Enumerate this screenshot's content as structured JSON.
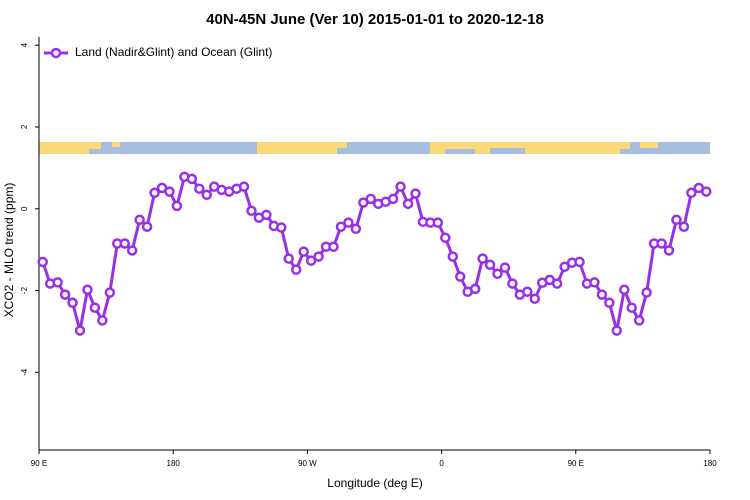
{
  "chart_data": {
    "type": "line",
    "title": "40N-45N June (Ver 10)   2015-01-01 to 2020-12-18",
    "x_label": "Longitude (deg E)",
    "y_label": "XCO2 - MLO trend (ppm)",
    "xlim": [
      90,
      540
    ],
    "ylim": [
      -5.9,
      4.2
    ],
    "xticks": [
      {
        "value": 90,
        "label": "90 E"
      },
      180,
      {
        "value": 270,
        "label": "90 W"
      },
      {
        "value": 360,
        "label": "0"
      },
      {
        "value": 450,
        "label": "90 E"
      },
      {
        "value": 540,
        "label": "180"
      }
    ],
    "yticks": [
      -4,
      -2,
      0,
      2,
      4
    ],
    "legend": "top-left",
    "x": [
      92.5,
      97.5,
      102.5,
      107.5,
      112.5,
      117.5,
      122.5,
      127.5,
      132.5,
      137.5,
      142.5,
      147.5,
      152.5,
      157.5,
      162.5,
      167.5,
      172.5,
      177.5,
      182.5,
      187.5,
      192.5,
      197.5,
      202.5,
      207.5,
      212.5,
      217.5,
      222.5,
      227.5,
      232.5,
      237.5,
      242.5,
      247.5,
      252.5,
      257.5,
      262.5,
      267.5,
      272.5,
      277.5,
      282.5,
      287.5,
      292.5,
      297.5,
      302.5,
      307.5,
      312.5,
      317.5,
      322.5,
      327.5,
      332.5,
      337.5,
      342.5,
      347.5,
      352.5,
      357.5,
      362.5,
      367.5,
      372.5,
      377.5,
      382.5,
      387.5,
      392.5,
      397.5,
      402.5,
      407.5,
      412.5,
      417.5,
      422.5,
      427.5,
      432.5,
      437.5,
      442.5,
      447.5,
      452.5,
      457.5,
      462.5,
      467.5,
      472.5,
      477.5,
      482.5,
      487.5,
      492.5,
      497.5,
      502.5,
      507.5,
      512.5,
      517.5,
      522.5,
      527.5,
      532.5,
      537.5
    ],
    "series": [
      {
        "name": "Land (Nadir&Glint) and Ocean (Glint)",
        "color": "#9a30e6",
        "values": [
          -1.3,
          -1.83,
          -1.8,
          -2.1,
          -2.3,
          -2.98,
          -1.98,
          -2.42,
          -2.73,
          -2.05,
          -0.85,
          -0.85,
          -1.02,
          -0.27,
          -0.44,
          0.39,
          0.51,
          0.42,
          0.07,
          0.78,
          0.73,
          0.49,
          0.34,
          0.54,
          0.46,
          0.42,
          0.49,
          0.54,
          -0.05,
          -0.22,
          -0.15,
          -0.42,
          -0.46,
          -1.22,
          -1.49,
          -1.05,
          -1.27,
          -1.17,
          -0.93,
          -0.93,
          -0.44,
          -0.34,
          -0.49,
          0.15,
          0.24,
          0.12,
          0.17,
          0.24,
          0.54,
          0.12,
          0.37,
          -0.32,
          -0.34,
          -0.34,
          -0.71,
          -1.17,
          -1.66,
          -2.03,
          -1.96,
          -1.22,
          -1.37,
          -1.59,
          -1.44,
          -1.83,
          -2.1,
          -2.03,
          -2.2,
          -1.81,
          -1.74,
          -1.83,
          -1.42,
          -1.32,
          -1.3,
          -1.83,
          -1.8,
          -2.1,
          -2.3,
          -2.98,
          -1.98,
          -2.42,
          -2.73,
          -2.05,
          -0.85,
          -0.85,
          -1.02,
          -0.27,
          -0.44,
          0.39,
          0.51,
          0.42
        ]
      }
    ]
  }
}
